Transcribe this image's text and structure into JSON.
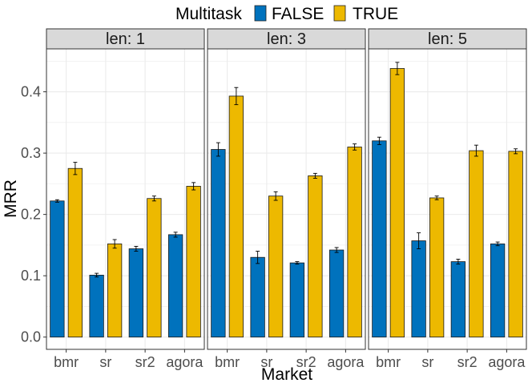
{
  "chart_data": {
    "type": "bar",
    "facet_label": "len",
    "facets": [
      {
        "label": "len: 1",
        "series": [
          {
            "name": "FALSE",
            "values": [
              0.222,
              0.101,
              0.144,
              0.167
            ],
            "errors": [
              0.002,
              0.003,
              0.004,
              0.004
            ]
          },
          {
            "name": "TRUE",
            "values": [
              0.275,
              0.152,
              0.226,
              0.246
            ],
            "errors": [
              0.01,
              0.007,
              0.004,
              0.006
            ]
          }
        ]
      },
      {
        "label": "len: 3",
        "series": [
          {
            "name": "FALSE",
            "values": [
              0.306,
              0.13,
              0.121,
              0.142
            ],
            "errors": [
              0.011,
              0.01,
              0.002,
              0.004
            ]
          },
          {
            "name": "TRUE",
            "values": [
              0.393,
              0.23,
              0.263,
              0.31
            ],
            "errors": [
              0.014,
              0.007,
              0.004,
              0.005
            ]
          }
        ]
      },
      {
        "label": "len: 5",
        "series": [
          {
            "name": "FALSE",
            "values": [
              0.32,
              0.157,
              0.123,
              0.152
            ],
            "errors": [
              0.006,
              0.013,
              0.004,
              0.003
            ]
          },
          {
            "name": "TRUE",
            "values": [
              0.438,
              0.227,
              0.304,
              0.303
            ],
            "errors": [
              0.01,
              0.003,
              0.009,
              0.004
            ]
          }
        ]
      }
    ],
    "categories": [
      "bmr",
      "sr",
      "sr2",
      "agora"
    ],
    "xlabel": "Market",
    "ylabel": "MRR",
    "ylim": [
      -0.02,
      0.47
    ],
    "yticks": [
      0.0,
      0.1,
      0.2,
      0.3,
      0.4
    ],
    "ytick_labels": [
      "0.0",
      "0.1",
      "0.2",
      "0.3",
      "0.4"
    ],
    "grid": true,
    "legend": {
      "title": "Multitask",
      "position": "top",
      "entries": [
        {
          "label": "FALSE",
          "color": "#0072BD"
        },
        {
          "label": "TRUE",
          "color": "#EDB900"
        }
      ]
    },
    "colors": {
      "FALSE": "#0072BD",
      "TRUE": "#EDB900",
      "strip_bg": "#D9D9D9",
      "panel_border": "#333333",
      "grid": "#EBEBEB"
    }
  }
}
